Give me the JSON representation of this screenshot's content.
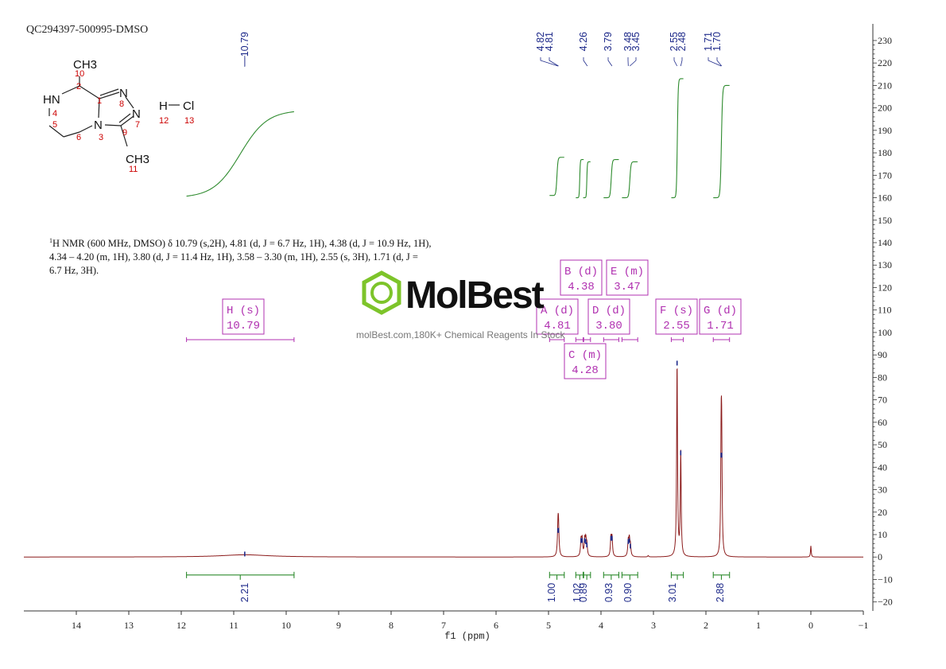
{
  "sample_id": "QC294397-500995-DMSO",
  "description": {
    "nucleus_sup": "1",
    "text_1": "H NMR (600 MHz, DMSO) δ 10.79 (s,2H), 4.81 (d, J = 6.7 Hz, 1H), 4.38 (d, J = 10.9 Hz, 1H),",
    "text_2": "4.34 – 4.20 (m, 1H), 3.80 (d, J = 11.4 Hz, 1H), 3.58 – 3.30 (m, 1H), 2.55 (s, 3H), 1.71 (d, J =",
    "text_3": "6.7 Hz, 3H)."
  },
  "watermark": {
    "logo_text": "MolBest",
    "tagline": "molBest.com,180K+ Chemical Reagents In Stock"
  },
  "colors": {
    "spectrum": "#8b1a1a",
    "integral": "#2e8b2e",
    "peak_label": "#1e2a8a",
    "multiplet": "#b030b0",
    "structure_red": "#cc0000",
    "logo_green": "#7dc42a"
  },
  "structure": {
    "atoms": [
      "CH3",
      "HN",
      "N",
      "N",
      "N",
      "CH3",
      "H",
      "Cl"
    ],
    "numbers": [
      "10",
      "2",
      "1",
      "8",
      "4",
      "5",
      "6",
      "3",
      "9",
      "7",
      "11",
      "12",
      "13"
    ]
  },
  "chart_data": {
    "type": "line",
    "xlabel": "f1 (ppm)",
    "xlim": [
      15,
      -1
    ],
    "x_ticks": [
      14,
      13,
      12,
      11,
      10,
      9,
      8,
      7,
      6,
      5,
      4,
      3,
      2,
      1,
      0,
      -1
    ],
    "y_ticks": [
      230,
      220,
      210,
      200,
      190,
      180,
      170,
      160,
      150,
      140,
      130,
      120,
      110,
      100,
      90,
      80,
      70,
      60,
      50,
      40,
      30,
      20,
      10,
      0,
      -10,
      -20
    ],
    "ylim": [
      -24,
      236
    ],
    "peak_labels": [
      "10.79",
      "4.82",
      "4.81",
      "4.26",
      "3.79",
      "3.48",
      "3.45",
      "2.55",
      "2.48",
      "1.71",
      "1.70"
    ],
    "peaks": [
      {
        "ppm": 10.79,
        "height": 1,
        "width": 0.55
      },
      {
        "ppm": 4.82,
        "height": 11.5,
        "width": 0.012
      },
      {
        "ppm": 4.81,
        "height": 11.5,
        "width": 0.012
      },
      {
        "ppm": 4.38,
        "height": 7,
        "width": 0.012
      },
      {
        "ppm": 4.36,
        "height": 7,
        "width": 0.012
      },
      {
        "ppm": 4.31,
        "height": 7,
        "width": 0.012
      },
      {
        "ppm": 4.29,
        "height": 6.5,
        "width": 0.012
      },
      {
        "ppm": 4.27,
        "height": 5,
        "width": 0.012
      },
      {
        "ppm": 3.81,
        "height": 8,
        "width": 0.012
      },
      {
        "ppm": 3.79,
        "height": 8,
        "width": 0.012
      },
      {
        "ppm": 3.48,
        "height": 6.5,
        "width": 0.012
      },
      {
        "ppm": 3.46,
        "height": 7,
        "width": 0.012
      },
      {
        "ppm": 3.44,
        "height": 4.5,
        "width": 0.012
      },
      {
        "ppm": 3.1,
        "height": 0.6,
        "width": 0.01
      },
      {
        "ppm": 2.55,
        "height": 86,
        "width": 0.01
      },
      {
        "ppm": 2.48,
        "height": 46,
        "width": 0.01
      },
      {
        "ppm": 1.71,
        "height": 45,
        "width": 0.01
      },
      {
        "ppm": 1.7,
        "height": 45,
        "width": 0.01
      },
      {
        "ppm": 0.0,
        "height": 5,
        "width": 0.008
      }
    ],
    "integrals": [
      {
        "from": 11.9,
        "to": 9.85,
        "value": "2.21",
        "y0": 160,
        "y1": 199
      },
      {
        "from": 4.98,
        "to": 4.7,
        "value": "1.00",
        "y0": 161,
        "y1": 178
      },
      {
        "from": 4.48,
        "to": 4.33,
        "value": "1.02",
        "y0": 160,
        "y1": 177
      },
      {
        "from": 4.34,
        "to": 4.2,
        "value": "0.89",
        "y0": 160,
        "y1": 176
      },
      {
        "from": 3.95,
        "to": 3.66,
        "value": "0.93",
        "y0": 160,
        "y1": 177
      },
      {
        "from": 3.6,
        "to": 3.3,
        "value": "0.90",
        "y0": 160,
        "y1": 176
      },
      {
        "from": 2.66,
        "to": 2.43,
        "value": "3.01",
        "y0": 160,
        "y1": 213
      },
      {
        "from": 1.86,
        "to": 1.55,
        "value": "2.88",
        "y0": 160,
        "y1": 210
      }
    ],
    "multiplets": [
      {
        "label": "H (s)",
        "shift": "10.79",
        "from": 11.9,
        "to": 9.85
      },
      {
        "label": "A (d)",
        "shift": "4.81",
        "from": 4.98,
        "to": 4.7
      },
      {
        "label": "B (d)",
        "shift": "4.38",
        "from": 4.48,
        "to": 4.33
      },
      {
        "label": "C (m)",
        "shift": "4.28",
        "from": 4.34,
        "to": 4.2
      },
      {
        "label": "D (d)",
        "shift": "3.80",
        "from": 3.95,
        "to": 3.66
      },
      {
        "label": "E (m)",
        "shift": "3.47",
        "from": 3.6,
        "to": 3.3
      },
      {
        "label": "F (s)",
        "shift": "2.55",
        "from": 2.66,
        "to": 2.43
      },
      {
        "label": "G (d)",
        "shift": "1.71",
        "from": 1.86,
        "to": 1.55
      }
    ]
  }
}
